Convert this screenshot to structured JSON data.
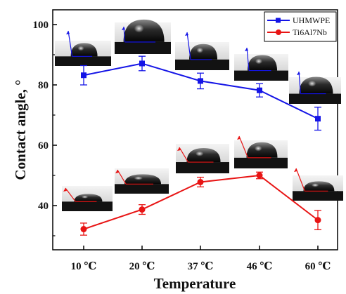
{
  "chart_data": {
    "type": "line",
    "xlabel": "Temperature",
    "ylabel": "Contact angle, °",
    "categories": [
      "10 ℃",
      "20 ℃",
      "37 ℃",
      "46 ℃",
      "60 ℃"
    ],
    "ylim": [
      30,
      104
    ],
    "yticks": [
      40,
      60,
      80,
      100
    ],
    "grid": false,
    "legend_position": "top-right",
    "series": [
      {
        "name": "UHMWPE",
        "color": "#1414e6",
        "marker": "square",
        "values": [
          83.2,
          87.1,
          81.3,
          78.2,
          68.8
        ],
        "errors": [
          3.2,
          2.4,
          2.6,
          2.2,
          3.8
        ]
      },
      {
        "name": "Ti6Al7Nb",
        "color": "#e81414",
        "marker": "circle",
        "values": [
          32.2,
          38.7,
          47.8,
          50.0,
          35.2
        ],
        "errors": [
          2.0,
          1.6,
          1.6,
          1.1,
          3.2
        ]
      }
    ],
    "droplet_images": [
      {
        "series": "UHMWPE",
        "category": "10 ℃",
        "icon": "water-droplet-photo"
      },
      {
        "series": "UHMWPE",
        "category": "20 ℃",
        "icon": "water-droplet-photo"
      },
      {
        "series": "UHMWPE",
        "category": "37 ℃",
        "icon": "water-droplet-photo"
      },
      {
        "series": "UHMWPE",
        "category": "46 ℃",
        "icon": "water-droplet-photo"
      },
      {
        "series": "UHMWPE",
        "category": "60 ℃",
        "icon": "water-droplet-photo"
      },
      {
        "series": "Ti6Al7Nb",
        "category": "10 ℃",
        "icon": "water-droplet-photo"
      },
      {
        "series": "Ti6Al7Nb",
        "category": "20 ℃",
        "icon": "water-droplet-photo"
      },
      {
        "series": "Ti6Al7Nb",
        "category": "37 ℃",
        "icon": "water-droplet-photo"
      },
      {
        "series": "Ti6Al7Nb",
        "category": "46 ℃",
        "icon": "water-droplet-photo"
      },
      {
        "series": "Ti6Al7Nb",
        "category": "60 ℃",
        "icon": "water-droplet-photo"
      }
    ]
  }
}
